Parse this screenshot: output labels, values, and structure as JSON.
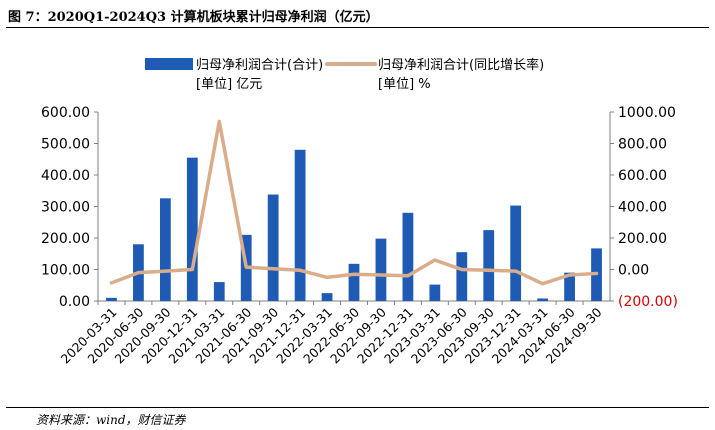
{
  "figure": {
    "title": "图 7：2020Q1-2024Q3 计算机板块累计归母净利润（亿元）",
    "source": "资料来源：wind，财信证券"
  },
  "colors": {
    "bar": "#1f5bb4",
    "line": "#d9ad8a",
    "negative_tick": "#d40000",
    "axis": "#808080"
  },
  "chart_data": {
    "type": "bar",
    "categories": [
      "2020-03-31",
      "2020-06-30",
      "2020-09-30",
      "2020-12-31",
      "2021-03-31",
      "2021-06-30",
      "2021-09-30",
      "2021-12-31",
      "2022-03-31",
      "2022-06-30",
      "2022-09-30",
      "2022-12-31",
      "2023-03-31",
      "2023-06-30",
      "2023-09-30",
      "2023-12-31",
      "2024-03-31",
      "2024-06-30",
      "2024-09-30"
    ],
    "series": [
      {
        "name": "归母净利润合计(合计)",
        "unit_label": "[单位] 亿元",
        "type": "bar",
        "axis": "left",
        "values": [
          10,
          180,
          326,
          455,
          60,
          210,
          338,
          480,
          25,
          118,
          198,
          280,
          52,
          155,
          225,
          303,
          8,
          90,
          167
        ]
      },
      {
        "name": "归母净利润合计(同比增长率)",
        "unit_label": "[单位] %",
        "type": "line",
        "axis": "right",
        "values": [
          -85,
          -20,
          -10,
          0,
          940,
          15,
          5,
          -5,
          -50,
          -30,
          -35,
          -40,
          60,
          0,
          -5,
          -10,
          -90,
          -35,
          -25
        ]
      }
    ],
    "y_left": {
      "range": [
        0,
        600
      ],
      "ticks": [
        "600.00",
        "500.00",
        "400.00",
        "300.00",
        "200.00",
        "100.00",
        "0.00"
      ]
    },
    "y_right": {
      "range": [
        -200,
        1000
      ],
      "ticks": [
        "1000.00",
        "800.00",
        "600.00",
        "400.00",
        "200.00",
        "0.00",
        "(200.00)"
      ]
    },
    "grid": false,
    "legend_position": "top"
  }
}
